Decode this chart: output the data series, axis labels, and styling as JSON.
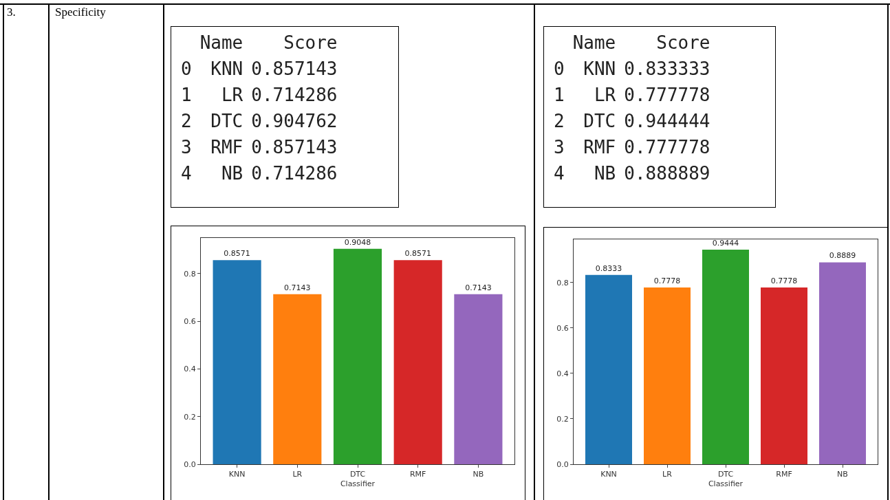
{
  "chart_data": [
    {
      "type": "bar",
      "xlabel": "Classifier",
      "categories": [
        "KNN",
        "LR",
        "DTC",
        "RMF",
        "NB"
      ],
      "values": [
        0.857143,
        0.714286,
        0.904762,
        0.857143,
        0.714286
      ],
      "value_labels": [
        "0.8571",
        "0.7143",
        "0.9048",
        "0.8571",
        "0.7143"
      ],
      "colors": [
        "#1f77b4",
        "#ff7f0e",
        "#2ca02c",
        "#d62728",
        "#9467bd"
      ],
      "ylim": [
        0,
        0.95
      ],
      "yticks": [
        {
          "value": 0,
          "label": "0.0"
        },
        {
          "value": 0.2,
          "label": "0.2"
        },
        {
          "value": 0.4,
          "label": "0.4"
        },
        {
          "value": 0.6,
          "label": "0.6"
        },
        {
          "value": 0.8,
          "label": "0.8"
        }
      ],
      "grid": false,
      "annotations": [
        "3.",
        "Specificity",
        "Name",
        "Score",
        "0",
        "1",
        "2",
        "3",
        "4",
        "0.857143",
        "0.714286",
        "0.904762",
        "0.857143",
        "0.714286"
      ]
    },
    {
      "type": "bar",
      "xlabel": "Classifier",
      "categories": [
        "KNN",
        "LR",
        "DTC",
        "RMF",
        "NB"
      ],
      "values": [
        0.833333,
        0.777778,
        0.944444,
        0.777778,
        0.888889
      ],
      "value_labels": [
        "0.8333",
        "0.7778",
        "0.9444",
        "0.7778",
        "0.8889"
      ],
      "colors": [
        "#1f77b4",
        "#ff7f0e",
        "#2ca02c",
        "#d62728",
        "#9467bd"
      ],
      "ylim": [
        0,
        0.99
      ],
      "yticks": [
        {
          "value": 0,
          "label": "0.0"
        },
        {
          "value": 0.2,
          "label": "0.2"
        },
        {
          "value": 0.4,
          "label": "0.4"
        },
        {
          "value": 0.6,
          "label": "0.6"
        },
        {
          "value": 0.8,
          "label": "0.8"
        }
      ],
      "grid": false,
      "annotations": [
        "Name",
        "Score",
        "0",
        "1",
        "2",
        "3",
        "4",
        "0.833333",
        "0.777778",
        "0.944444",
        "0.777778",
        "0.888889"
      ]
    }
  ]
}
